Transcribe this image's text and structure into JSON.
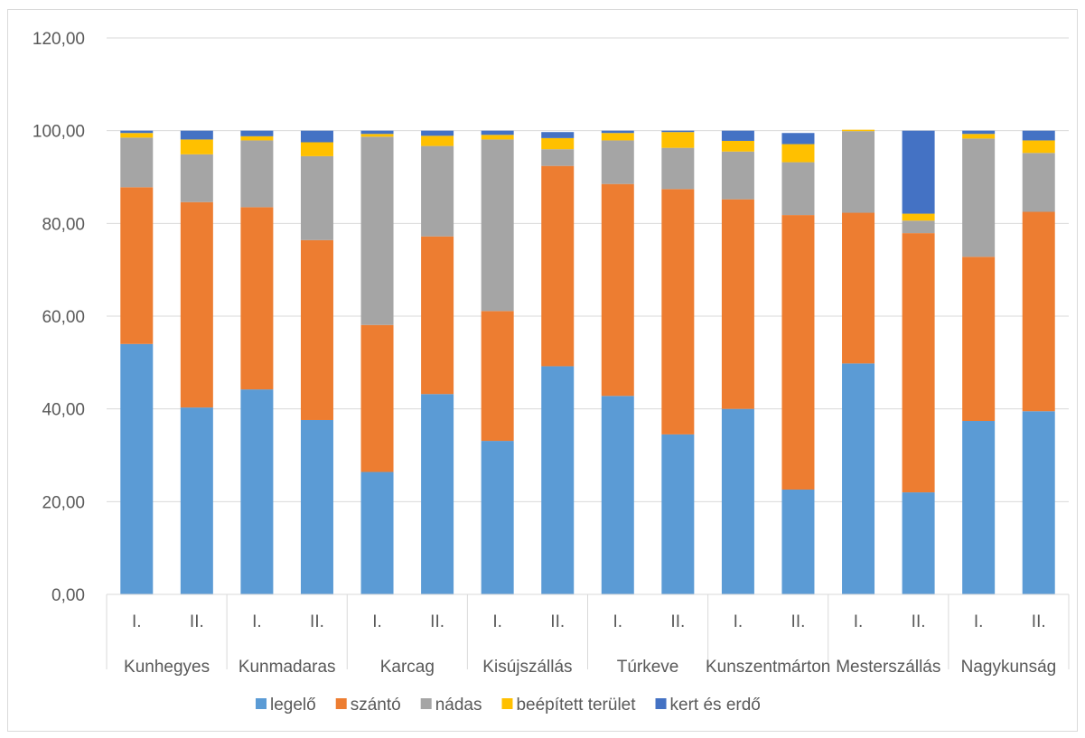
{
  "chart_data": {
    "type": "bar",
    "stacked": true,
    "title": "",
    "xlabel": "",
    "ylabel": "",
    "ylim": [
      0,
      120
    ],
    "yticks": [
      "0,00",
      "20,00",
      "40,00",
      "60,00",
      "80,00",
      "100,00",
      "120,00"
    ],
    "grid": true,
    "legend": "bottom",
    "groups": [
      "Kunhegyes",
      "Kunmadaras",
      "Karcag",
      "Kisújszállás",
      "Túrkeve",
      "Kunszentmárton",
      "Mesterszállás",
      "Nagykunság"
    ],
    "subcategories": [
      "I.",
      "II."
    ],
    "series": [
      {
        "name": "legelő",
        "color": "#5b9bd5",
        "values": [
          54.0,
          40.3,
          44.2,
          37.6,
          26.4,
          43.2,
          33.1,
          49.2,
          42.8,
          34.5,
          40.0,
          22.6,
          49.8,
          22.0,
          37.4,
          39.5
        ]
      },
      {
        "name": "szántó",
        "color": "#ed7d31",
        "values": [
          33.8,
          44.3,
          39.3,
          38.8,
          31.7,
          34.0,
          28.0,
          43.2,
          45.7,
          52.9,
          45.2,
          59.2,
          32.5,
          55.9,
          35.4,
          43.0
        ]
      },
      {
        "name": "nádas",
        "color": "#a5a5a5",
        "values": [
          10.7,
          10.3,
          14.4,
          18.1,
          40.6,
          19.5,
          37.0,
          3.6,
          9.4,
          8.9,
          10.3,
          11.4,
          17.6,
          2.7,
          25.5,
          12.7
        ]
      },
      {
        "name": "beépített terület",
        "color": "#ffc000",
        "values": [
          1.0,
          3.2,
          0.9,
          3.0,
          0.6,
          2.2,
          1.0,
          2.4,
          1.6,
          3.4,
          2.3,
          3.9,
          0.3,
          1.5,
          1.0,
          2.7
        ]
      },
      {
        "name": "kert és erdő",
        "color": "#4472c4",
        "values": [
          0.5,
          1.9,
          1.2,
          2.5,
          0.7,
          1.1,
          0.9,
          1.3,
          0.5,
          0.3,
          2.2,
          2.4,
          0.0,
          17.9,
          0.7,
          2.1
        ]
      }
    ]
  }
}
